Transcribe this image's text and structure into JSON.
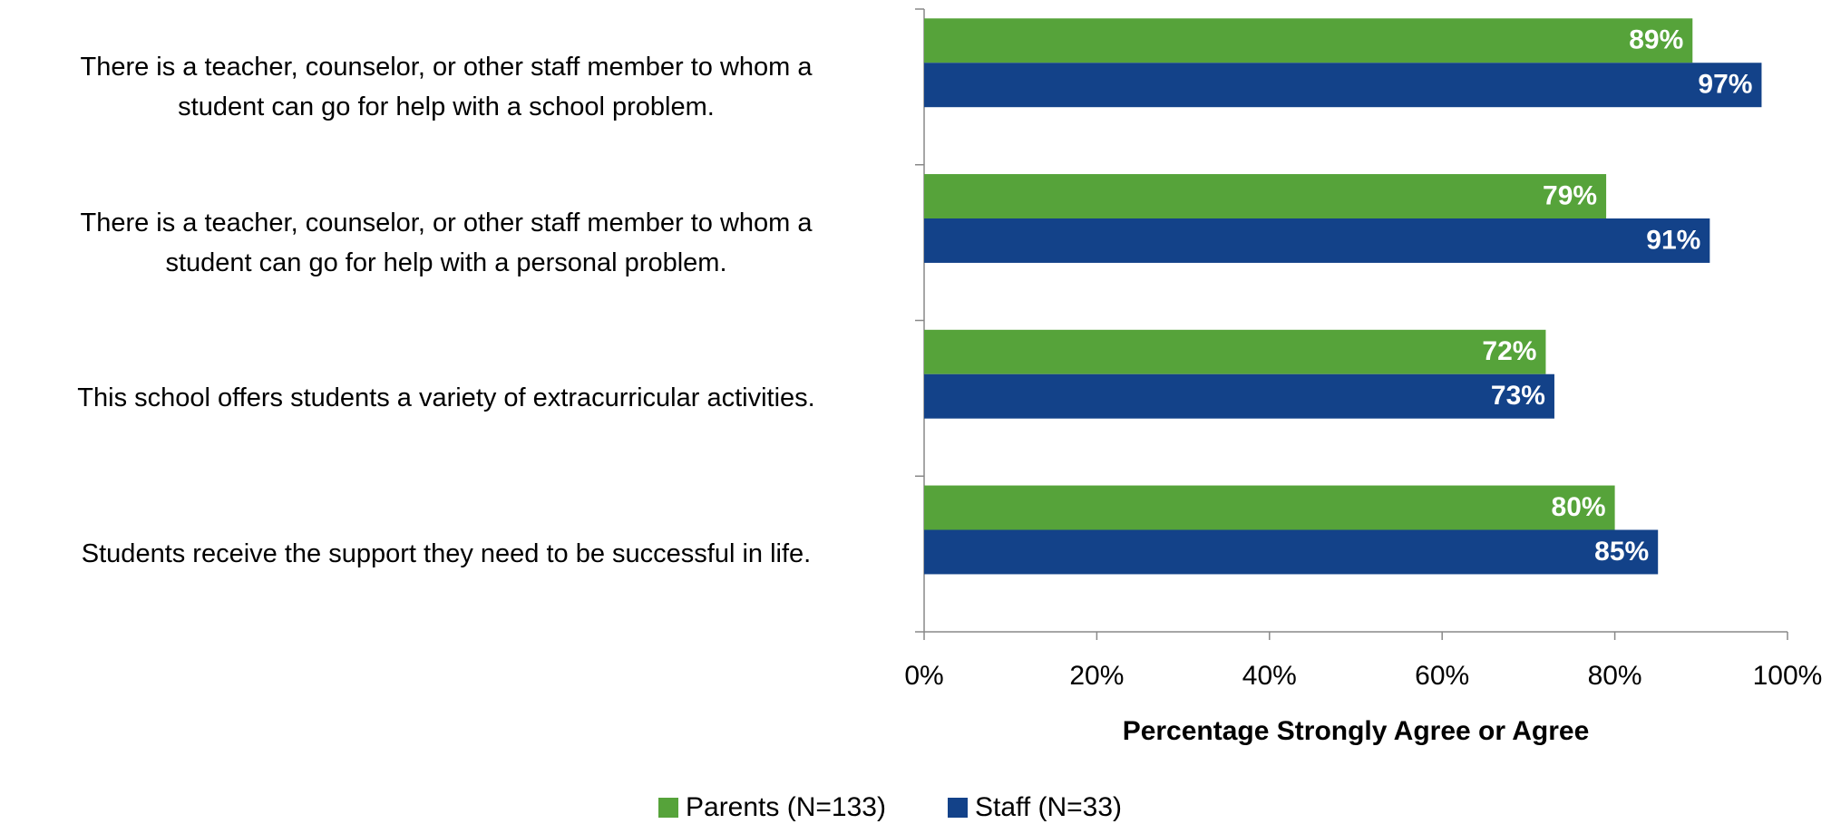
{
  "chart_data": {
    "type": "bar",
    "orientation": "horizontal",
    "categories": [
      "There is a teacher, counselor, or other staff member to whom a\nstudent can go for help with a school problem.",
      "There is a teacher, counselor, or other staff member to whom a\nstudent can go for help with a personal problem.",
      "This school offers students a variety of extracurricular activities.",
      "Students receive the support they need to be successful in life."
    ],
    "series": [
      {
        "name": "Parents (N=133)",
        "color": "#56a33a",
        "values": [
          89,
          79,
          72,
          80
        ],
        "value_labels": [
          "89%",
          "79%",
          "72%",
          "80%"
        ]
      },
      {
        "name": "Staff (N=33)",
        "color": "#134289",
        "values": [
          97,
          91,
          73,
          85
        ],
        "value_labels": [
          "97%",
          "91%",
          "73%",
          "85%"
        ]
      }
    ],
    "xlabel": "Percentage Strongly Agree or Agree",
    "xlim": [
      0,
      100
    ],
    "xticks": [
      {
        "value": 0,
        "label": "0%"
      },
      {
        "value": 20,
        "label": "20%"
      },
      {
        "value": 40,
        "label": "40%"
      },
      {
        "value": 60,
        "label": "60%"
      },
      {
        "value": 80,
        "label": "80%"
      },
      {
        "value": 100,
        "label": "100%"
      }
    ],
    "legend": "bottom"
  }
}
